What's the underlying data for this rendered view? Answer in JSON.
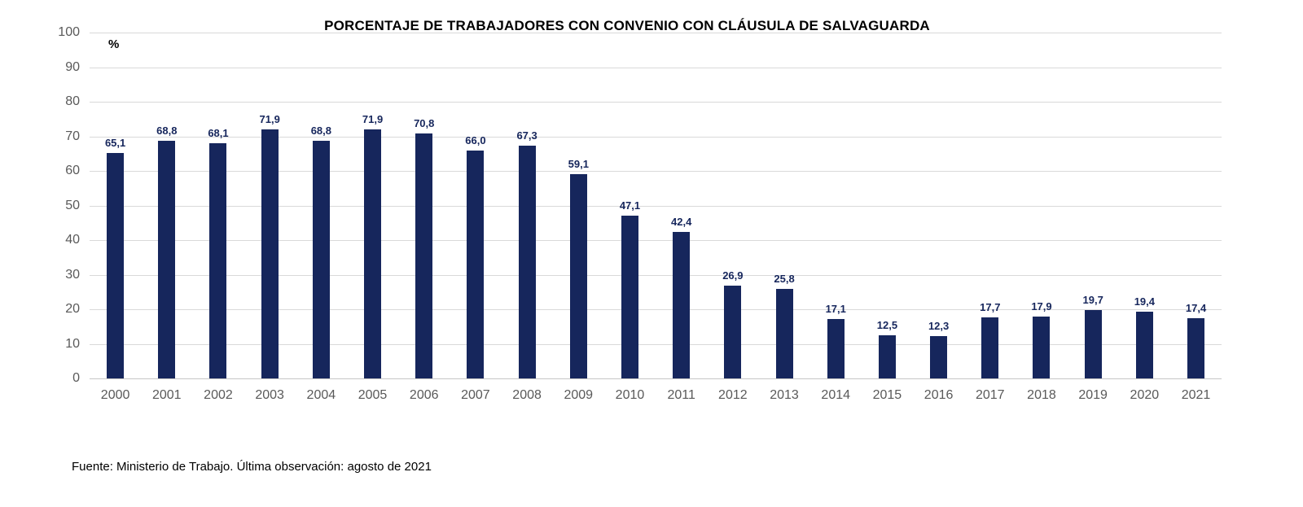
{
  "chart_data": {
    "type": "bar",
    "title": "PORCENTAJE DE TRABAJADORES CON CONVENIO CON CLÁUSULA DE SALVAGUARDA",
    "xlabel": "",
    "ylabel": "%",
    "categories": [
      "2000",
      "2001",
      "2002",
      "2003",
      "2004",
      "2005",
      "2006",
      "2007",
      "2008",
      "2009",
      "2010",
      "2011",
      "2012",
      "2013",
      "2014",
      "2015",
      "2016",
      "2017",
      "2018",
      "2019",
      "2020",
      "2021"
    ],
    "values": [
      65.1,
      68.8,
      68.1,
      71.9,
      68.8,
      71.9,
      70.8,
      66.0,
      67.3,
      59.1,
      47.1,
      42.4,
      26.9,
      25.8,
      17.1,
      12.5,
      12.3,
      17.7,
      17.9,
      19.7,
      19.4,
      17.4
    ],
    "value_labels": [
      "65,1",
      "68,8",
      "68,1",
      "71,9",
      "68,8",
      "71,9",
      "70,8",
      "66,0",
      "67,3",
      "59,1",
      "47,1",
      "42,4",
      "26,9",
      "25,8",
      "17,1",
      "12,5",
      "12,3",
      "17,7",
      "17,9",
      "19,7",
      "19,4",
      "17,4"
    ],
    "ylim": [
      0,
      100
    ],
    "yticks": [
      0,
      10,
      20,
      30,
      40,
      50,
      60,
      70,
      80,
      90,
      100
    ],
    "grid": true,
    "legend": "none",
    "colors": {
      "bar": "#16265c",
      "value_label": "#16265c",
      "axis_tick_label": "#595959",
      "gridline": "#d9d9d9",
      "title": "#000000"
    }
  },
  "source_note": "Fuente: Ministerio de Trabajo. Última observación: agosto de 2021"
}
